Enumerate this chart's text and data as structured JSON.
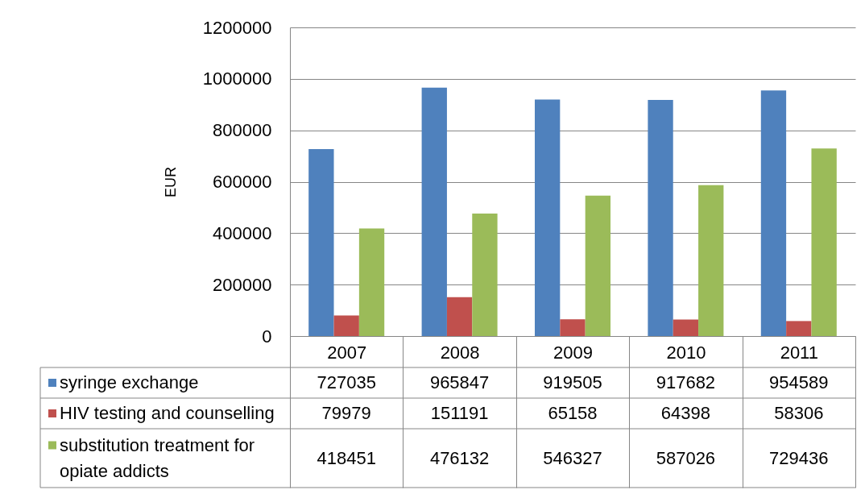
{
  "chart_data": {
    "type": "bar",
    "ylabel": "EUR",
    "categories": [
      "2007",
      "2008",
      "2009",
      "2010",
      "2011"
    ],
    "series": [
      {
        "name": "syringe exchange",
        "color": "#4f81bd",
        "values": [
          727035,
          965847,
          919505,
          917682,
          954589
        ]
      },
      {
        "name": "HIV testing and counselling",
        "color": "#c0504d",
        "values": [
          79979,
          151191,
          65158,
          64398,
          58306
        ]
      },
      {
        "name": "substitution treatment for opiate addicts",
        "color": "#9bbb59",
        "values": [
          418451,
          476132,
          546327,
          587026,
          729436
        ]
      }
    ],
    "ylim": [
      0,
      1200000
    ],
    "yticks": [
      0,
      200000,
      400000,
      600000,
      800000,
      1000000,
      1200000
    ],
    "grid": "y",
    "data_labels": true,
    "legend": "bottom"
  }
}
